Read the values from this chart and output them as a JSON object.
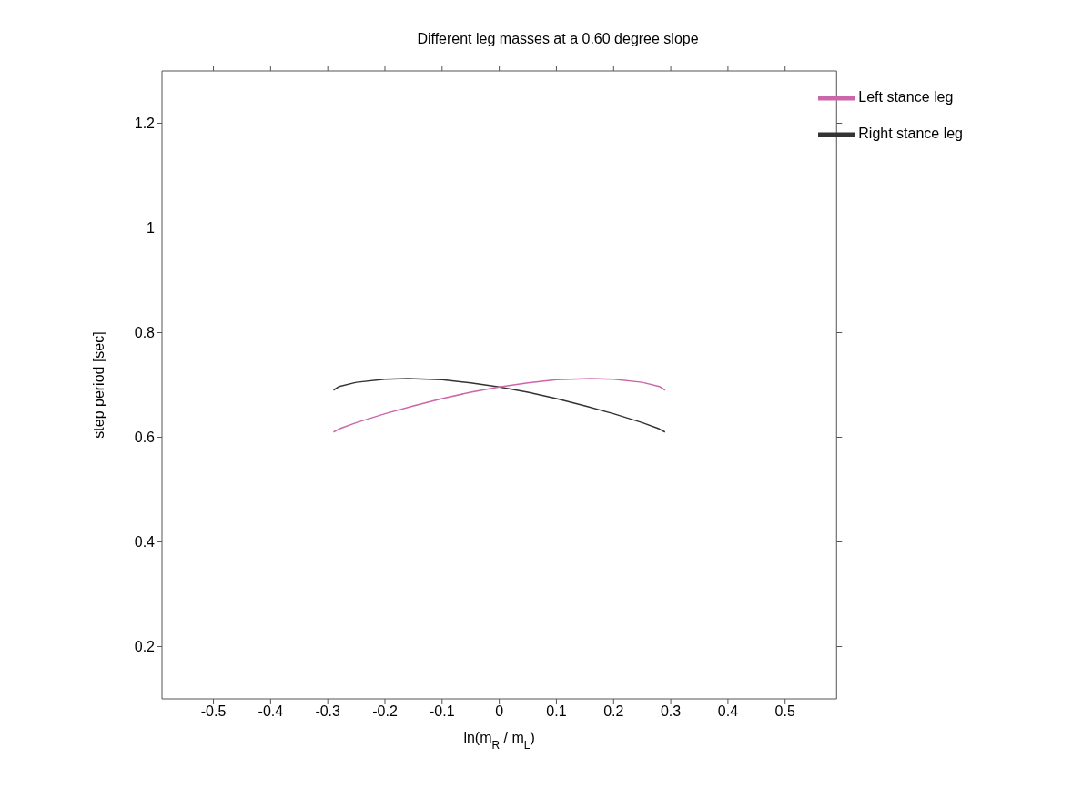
{
  "chart_data": {
    "type": "line",
    "title": "Different leg masses at a 0.60 degree slope",
    "xlabel": "ln(m$_{R}$ / m$_{L}$)",
    "ylabel": "step period [sec]",
    "xlim": [
      -0.59,
      0.59
    ],
    "xticks": [
      -0.5,
      -0.4,
      -0.3,
      -0.2,
      -0.1,
      0,
      0.1,
      0.2,
      0.3,
      0.4,
      0.5
    ],
    "ylim": [
      0.1,
      1.3
    ],
    "yticks": [
      0.2,
      0.4,
      0.6,
      0.8,
      1,
      1.2
    ],
    "grid": false,
    "legend": "top right",
    "marker": "none",
    "line_style": "solid",
    "series": [
      {
        "name": "Right stance leg",
        "color": "#333333",
        "x": [
          -0.29,
          -0.28,
          -0.25,
          -0.2,
          -0.16,
          -0.1,
          -0.05,
          0,
          0.05,
          0.1,
          0.15,
          0.2,
          0.25,
          0.28,
          0.29
        ],
        "values": [
          0.69,
          0.697,
          0.705,
          0.711,
          0.712,
          0.71,
          0.704,
          0.696,
          0.686,
          0.674,
          0.66,
          0.645,
          0.628,
          0.616,
          0.61
        ]
      },
      {
        "name": "Left stance leg",
        "color": "#cc66aa",
        "x": [
          -0.29,
          -0.28,
          -0.25,
          -0.2,
          -0.15,
          -0.1,
          -0.05,
          0,
          0.05,
          0.1,
          0.16,
          0.2,
          0.25,
          0.28,
          0.29
        ],
        "values": [
          0.61,
          0.616,
          0.628,
          0.645,
          0.66,
          0.674,
          0.686,
          0.696,
          0.704,
          0.71,
          0.712,
          0.711,
          0.705,
          0.697,
          0.69
        ]
      }
    ]
  }
}
